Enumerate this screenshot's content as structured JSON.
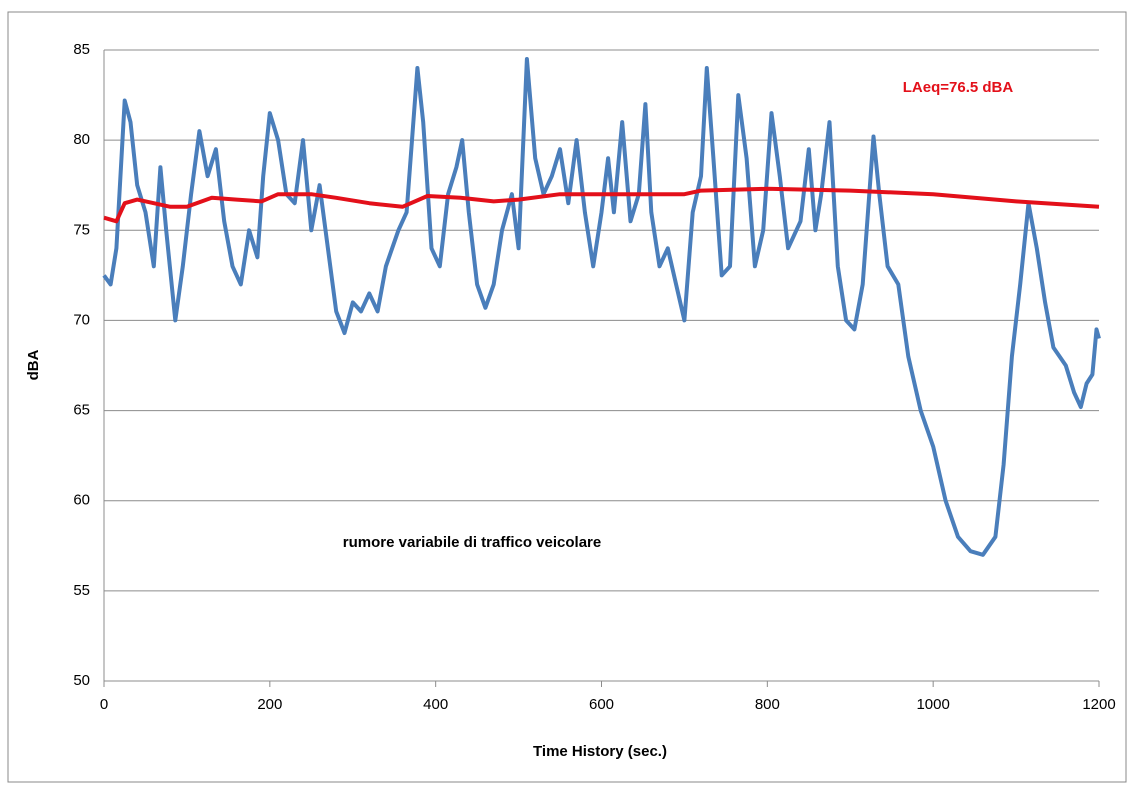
{
  "chart_data": {
    "type": "line",
    "xlabel": "Time History (sec.)",
    "ylabel": "dBA",
    "xlim": [
      0,
      1200
    ],
    "xticks": [
      0,
      200,
      400,
      600,
      800,
      1000,
      1200
    ],
    "ylim": [
      50,
      85
    ],
    "yticks": [
      50,
      55,
      60,
      65,
      70,
      75,
      80,
      85
    ],
    "grid": true,
    "annotations": [
      {
        "text": "LAeq=76.5 dBA",
        "color": "#e3101a"
      },
      {
        "text": "rumore variabile di traffico veicolare",
        "color": "#000000"
      }
    ],
    "series": [
      {
        "color": "#4a7ebb",
        "x": [
          0,
          8,
          15,
          25,
          32,
          40,
          50,
          60,
          68,
          75,
          86,
          95,
          105,
          115,
          125,
          135,
          145,
          155,
          165,
          175,
          185,
          192,
          200,
          210,
          220,
          230,
          240,
          250,
          260,
          270,
          280,
          290,
          300,
          310,
          320,
          330,
          340,
          355,
          365,
          378,
          385,
          395,
          405,
          415,
          425,
          432,
          440,
          450,
          460,
          470,
          480,
          492,
          500,
          510,
          520,
          530,
          540,
          550,
          560,
          570,
          580,
          590,
          600,
          608,
          615,
          625,
          635,
          645,
          653,
          660,
          670,
          680,
          690,
          700,
          710,
          720,
          727,
          735,
          745,
          755,
          765,
          775,
          785,
          795,
          805,
          815,
          825,
          840,
          850,
          858,
          865,
          875,
          885,
          895,
          905,
          915,
          928,
          935,
          945,
          958,
          970,
          985,
          1000,
          1015,
          1030,
          1045,
          1060,
          1075,
          1085,
          1095,
          1105,
          1115,
          1125,
          1135,
          1145,
          1160,
          1170,
          1178,
          1185,
          1192,
          1197,
          1200
        ],
        "values": [
          72.5,
          72,
          74,
          82.2,
          81,
          77.5,
          76,
          73,
          78.5,
          75,
          70,
          73,
          77,
          80.5,
          78,
          79.5,
          75.5,
          73,
          72,
          75,
          73.5,
          78,
          81.5,
          80,
          77,
          76.5,
          80,
          75,
          77.5,
          74,
          70.5,
          69.3,
          71,
          70.5,
          71.5,
          70.5,
          73,
          75,
          76,
          84,
          81,
          74,
          73,
          77,
          78.5,
          80,
          76,
          72,
          70.7,
          72,
          75,
          77,
          74,
          84.5,
          79,
          77,
          78,
          79.5,
          76.5,
          80,
          76,
          73,
          76,
          79,
          76,
          81,
          75.5,
          77,
          82,
          76,
          73,
          74,
          72,
          70,
          76,
          78,
          84,
          79,
          72.5,
          73,
          82.5,
          79,
          73,
          75,
          81.5,
          78,
          74,
          75.5,
          79.5,
          75,
          77,
          81,
          73,
          70,
          69.5,
          72,
          80.2,
          77,
          73,
          72,
          68,
          65,
          63,
          60,
          58,
          57.2,
          57,
          58,
          62,
          68,
          72,
          76.5,
          74,
          71,
          68.5,
          67.5,
          66,
          65.2,
          66.5,
          67,
          69.5,
          69
        ]
      },
      {
        "color": "#e3101a",
        "x": [
          0,
          15,
          25,
          40,
          60,
          80,
          100,
          130,
          160,
          190,
          210,
          250,
          280,
          320,
          360,
          390,
          430,
          470,
          500,
          550,
          600,
          700,
          720,
          800,
          900,
          1000,
          1100,
          1200
        ],
        "values": [
          75.7,
          75.5,
          76.5,
          76.7,
          76.5,
          76.3,
          76.3,
          76.8,
          76.7,
          76.6,
          77,
          77,
          76.8,
          76.5,
          76.3,
          76.9,
          76.8,
          76.6,
          76.7,
          77,
          77,
          77,
          77.2,
          77.3,
          77.2,
          77,
          76.6,
          76.3
        ]
      }
    ]
  }
}
